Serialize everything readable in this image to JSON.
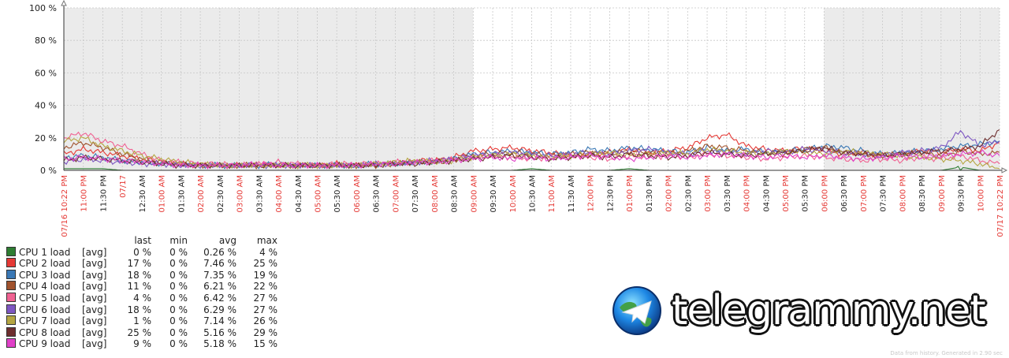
{
  "chart_data": {
    "type": "line",
    "title": "",
    "y_ticks": [
      "100 %",
      "80 %",
      "60 %",
      "40 %",
      "20 %",
      "0 %"
    ],
    "ylim": [
      0,
      100
    ],
    "x_ticks": [
      {
        "label": "07/16 10:22 PM",
        "red": true
      },
      {
        "label": "11:00 PM",
        "red": true
      },
      {
        "label": "11:30 PM",
        "red": false
      },
      {
        "label": "07/17",
        "red": true
      },
      {
        "label": "12:30 AM",
        "red": false
      },
      {
        "label": "01:00 AM",
        "red": true
      },
      {
        "label": "01:30 AM",
        "red": false
      },
      {
        "label": "02:00 AM",
        "red": true
      },
      {
        "label": "02:30 AM",
        "red": false
      },
      {
        "label": "03:00 AM",
        "red": true
      },
      {
        "label": "03:30 AM",
        "red": false
      },
      {
        "label": "04:00 AM",
        "red": true
      },
      {
        "label": "04:30 AM",
        "red": false
      },
      {
        "label": "05:00 AM",
        "red": true
      },
      {
        "label": "05:30 AM",
        "red": false
      },
      {
        "label": "06:00 AM",
        "red": true
      },
      {
        "label": "06:30 AM",
        "red": false
      },
      {
        "label": "07:00 AM",
        "red": true
      },
      {
        "label": "07:30 AM",
        "red": false
      },
      {
        "label": "08:00 AM",
        "red": true
      },
      {
        "label": "08:30 AM",
        "red": false
      },
      {
        "label": "09:00 AM",
        "red": true
      },
      {
        "label": "09:30 AM",
        "red": false
      },
      {
        "label": "10:00 AM",
        "red": true
      },
      {
        "label": "10:30 AM",
        "red": false
      },
      {
        "label": "11:00 AM",
        "red": true
      },
      {
        "label": "11:30 AM",
        "red": false
      },
      {
        "label": "12:00 PM",
        "red": true
      },
      {
        "label": "12:30 PM",
        "red": false
      },
      {
        "label": "01:00 PM",
        "red": true
      },
      {
        "label": "01:30 PM",
        "red": false
      },
      {
        "label": "02:00 PM",
        "red": true
      },
      {
        "label": "02:30 PM",
        "red": false
      },
      {
        "label": "03:00 PM",
        "red": true
      },
      {
        "label": "03:30 PM",
        "red": false
      },
      {
        "label": "04:00 PM",
        "red": true
      },
      {
        "label": "04:30 PM",
        "red": false
      },
      {
        "label": "05:00 PM",
        "red": true
      },
      {
        "label": "05:30 PM",
        "red": false
      },
      {
        "label": "06:00 PM",
        "red": true
      },
      {
        "label": "06:30 PM",
        "red": false
      },
      {
        "label": "07:00 PM",
        "red": true
      },
      {
        "label": "07:30 PM",
        "red": false
      },
      {
        "label": "08:00 PM",
        "red": true
      },
      {
        "label": "08:30 PM",
        "red": false
      },
      {
        "label": "09:00 PM",
        "red": true
      },
      {
        "label": "09:30 PM",
        "red": false
      },
      {
        "label": "10:00 PM",
        "red": true
      },
      {
        "label": "07/17 10:22 PM",
        "red": true
      }
    ],
    "night_periods": [
      [
        "07/16 10:22 PM",
        "09:00 AM"
      ],
      [
        "06:00 PM",
        "07/17 10:22 PM"
      ]
    ],
    "grid": true,
    "legend_placement": "bottom-left",
    "legend_headers": {
      "last": "last",
      "min": "min",
      "avg": "avg",
      "max": "max"
    },
    "series": [
      {
        "name": "CPU 1 load",
        "fn": "[avg]",
        "last": "0 %",
        "min": "0 %",
        "avg": "0.26 %",
        "max": "4 %",
        "color": "#2e7d32",
        "values": [
          1,
          1,
          1,
          0,
          0,
          0,
          0,
          0,
          0,
          0,
          0,
          0,
          0,
          0,
          0,
          0,
          0,
          0,
          0,
          0,
          0,
          0,
          0,
          0,
          1,
          0,
          0,
          0,
          0,
          1,
          0,
          0,
          0,
          0,
          0,
          0,
          0,
          0,
          0,
          0,
          0,
          0,
          0,
          0,
          0,
          0,
          2,
          0,
          0
        ]
      },
      {
        "name": "CPU 2 load",
        "fn": "[avg]",
        "last": "17 %",
        "min": "0 %",
        "avg": "7.46 %",
        "max": "25 %",
        "color": "#e53935",
        "values": [
          10,
          13,
          11,
          9,
          7,
          5,
          4,
          3,
          3,
          3,
          4,
          3,
          3,
          3,
          4,
          3,
          4,
          4,
          6,
          6,
          8,
          12,
          13,
          14,
          12,
          11,
          9,
          10,
          11,
          13,
          11,
          12,
          14,
          20,
          22,
          15,
          13,
          12,
          14,
          12,
          10,
          11,
          9,
          10,
          12,
          11,
          13,
          12,
          17
        ]
      },
      {
        "name": "CPU 3 load",
        "fn": "[avg]",
        "last": "18 %",
        "min": "0 %",
        "avg": "7.35 %",
        "max": "19 %",
        "color": "#3a78b5",
        "values": [
          8,
          9,
          8,
          6,
          5,
          4,
          4,
          3,
          3,
          3,
          3,
          4,
          3,
          3,
          3,
          3,
          4,
          4,
          5,
          5,
          7,
          10,
          11,
          12,
          11,
          10,
          11,
          13,
          12,
          14,
          13,
          12,
          11,
          14,
          12,
          13,
          11,
          12,
          13,
          15,
          14,
          12,
          10,
          11,
          12,
          13,
          15,
          16,
          18
        ]
      },
      {
        "name": "CPU 4 load",
        "fn": "[avg]",
        "last": "11 %",
        "min": "0 %",
        "avg": "6.21 %",
        "max": "22 %",
        "color": "#a0522d",
        "values": [
          14,
          17,
          14,
          10,
          7,
          5,
          4,
          3,
          3,
          3,
          3,
          3,
          3,
          3,
          3,
          3,
          3,
          4,
          5,
          5,
          6,
          9,
          10,
          11,
          10,
          9,
          10,
          11,
          10,
          12,
          11,
          10,
          12,
          15,
          14,
          12,
          11,
          10,
          13,
          14,
          11,
          10,
          9,
          10,
          11,
          9,
          12,
          10,
          11
        ]
      },
      {
        "name": "CPU 5 load",
        "fn": "[avg]",
        "last": "4 %",
        "min": "0 %",
        "avg": "6.42 %",
        "max": "27 %",
        "color": "#f06292",
        "values": [
          20,
          23,
          18,
          15,
          10,
          6,
          5,
          4,
          4,
          3,
          4,
          5,
          4,
          3,
          4,
          4,
          4,
          5,
          5,
          6,
          7,
          8,
          9,
          8,
          7,
          8,
          9,
          8,
          7,
          9,
          8,
          9,
          8,
          10,
          9,
          8,
          7,
          8,
          9,
          8,
          7,
          6,
          7,
          6,
          8,
          7,
          9,
          6,
          4
        ]
      },
      {
        "name": "CPU 6 load",
        "fn": "[avg]",
        "last": "18 %",
        "min": "0 %",
        "avg": "6.29 %",
        "max": "27 %",
        "color": "#7e57c2",
        "values": [
          5,
          7,
          6,
          5,
          4,
          4,
          3,
          3,
          3,
          3,
          3,
          3,
          3,
          3,
          3,
          3,
          4,
          4,
          5,
          6,
          7,
          9,
          10,
          11,
          10,
          9,
          10,
          11,
          10,
          12,
          13,
          11,
          10,
          12,
          11,
          10,
          12,
          11,
          13,
          12,
          11,
          10,
          9,
          11,
          12,
          14,
          24,
          15,
          18
        ]
      },
      {
        "name": "CPU 7 load",
        "fn": "[avg]",
        "last": "1 %",
        "min": "0 %",
        "avg": "7.14 %",
        "max": "26 %",
        "color": "#b5a642",
        "values": [
          18,
          20,
          15,
          12,
          9,
          7,
          5,
          4,
          3,
          3,
          3,
          3,
          3,
          3,
          3,
          3,
          4,
          5,
          6,
          5,
          6,
          8,
          9,
          10,
          9,
          8,
          9,
          10,
          11,
          9,
          10,
          11,
          10,
          13,
          12,
          11,
          10,
          12,
          11,
          10,
          12,
          11,
          10,
          9,
          8,
          7,
          6,
          4,
          1
        ]
      },
      {
        "name": "CPU 8 load",
        "fn": "[avg]",
        "last": "25 %",
        "min": "0 %",
        "avg": "5.16 %",
        "max": "29 %",
        "color": "#6d2e2e",
        "values": [
          6,
          8,
          7,
          6,
          5,
          4,
          3,
          3,
          3,
          3,
          3,
          3,
          3,
          3,
          3,
          3,
          3,
          4,
          4,
          5,
          6,
          7,
          8,
          9,
          8,
          7,
          8,
          9,
          8,
          10,
          9,
          8,
          9,
          11,
          10,
          9,
          10,
          11,
          12,
          14,
          11,
          10,
          9,
          10,
          11,
          12,
          13,
          15,
          25
        ]
      },
      {
        "name": "CPU 9 load",
        "fn": "[avg]",
        "last": "9 %",
        "min": "0 %",
        "avg": "5.18 %",
        "max": "15 %",
        "color": "#e040c8",
        "values": [
          7,
          8,
          7,
          6,
          5,
          4,
          3,
          3,
          3,
          3,
          4,
          3,
          3,
          3,
          3,
          3,
          4,
          4,
          5,
          5,
          6,
          7,
          8,
          7,
          8,
          7,
          8,
          9,
          8,
          7,
          8,
          9,
          8,
          9,
          10,
          9,
          8,
          9,
          8,
          9,
          8,
          7,
          8,
          9,
          8,
          9,
          10,
          11,
          9
        ]
      }
    ]
  },
  "watermark": {
    "text": "telegrammy.net",
    "logo_icon": "telegram-globe-icon"
  },
  "footer_note": "Data from history. Generated in 2.90 sec"
}
